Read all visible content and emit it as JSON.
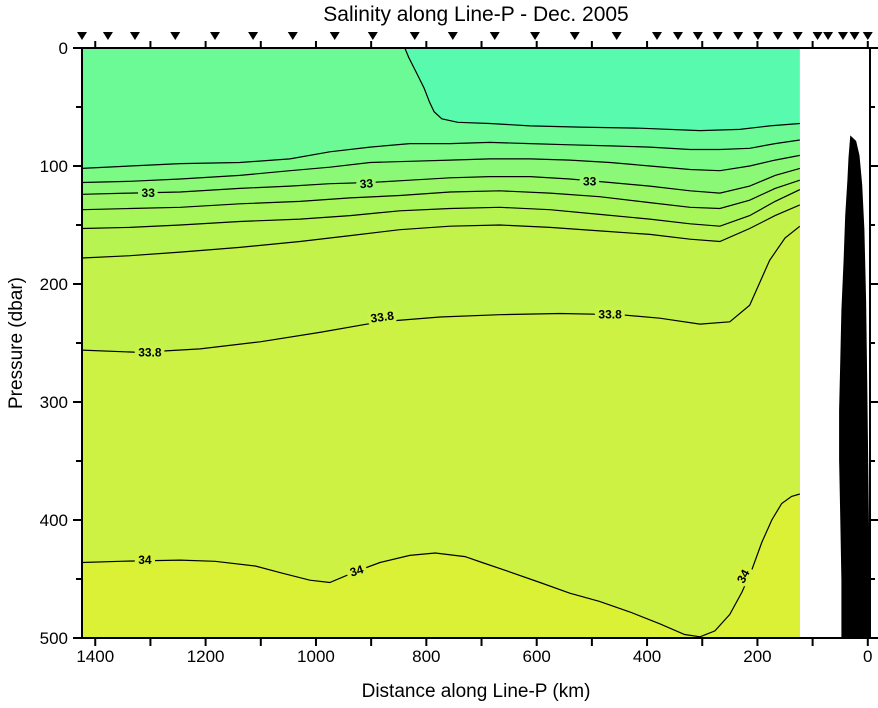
{
  "title": "Salinity along Line-P - Dec. 2005",
  "x_axis": {
    "label": "Distance along Line-P (km)",
    "min": -4,
    "max": 1424,
    "reversed": true,
    "major_ticks": [
      1400,
      1200,
      1000,
      800,
      600,
      400,
      200,
      0
    ],
    "minor_tick_step": 100
  },
  "y_axis": {
    "label": "Pressure (dbar)",
    "min": 0,
    "max": 500,
    "major_ticks": [
      0,
      100,
      200,
      300,
      400,
      500
    ],
    "minor_tick_step": 50
  },
  "chart_data": {
    "type": "filled-contour-section",
    "quantity": "Salinity",
    "data_extent_km": [
      123,
      1424
    ],
    "levels": [
      32.4,
      32.6,
      32.8,
      33.0,
      33.2,
      33.4,
      33.6,
      33.8,
      34.0
    ],
    "band_colors": [
      "#58FAAD",
      "#6CFA97",
      "#7CFA86",
      "#8BF977",
      "#9AF868",
      "#A9F65B",
      "#B7F452",
      "#C3F34B",
      "#CEF243",
      "#DAF136"
    ],
    "contour_line_color": "#000000",
    "bathymetry_color": "#000000",
    "contours": [
      {
        "level": 32.4,
        "points": [
          [
            839,
            0
          ],
          [
            832,
            8
          ],
          [
            819,
            20
          ],
          [
            804,
            34
          ],
          [
            794,
            46
          ],
          [
            786,
            54
          ],
          [
            772,
            60
          ],
          [
            743,
            63
          ],
          [
            685,
            64
          ],
          [
            612,
            66
          ],
          [
            522,
            67
          ],
          [
            413,
            68
          ],
          [
            304,
            70
          ],
          [
            232,
            69
          ],
          [
            178,
            66
          ],
          [
            123,
            64
          ]
        ]
      },
      {
        "level": 32.6,
        "points": [
          [
            1424,
            102
          ],
          [
            1337,
            100
          ],
          [
            1246,
            98
          ],
          [
            1138,
            97
          ],
          [
            1047,
            94
          ],
          [
            975,
            88
          ],
          [
            902,
            84
          ],
          [
            830,
            81
          ],
          [
            757,
            81
          ],
          [
            685,
            80
          ],
          [
            612,
            81
          ],
          [
            540,
            82
          ],
          [
            467,
            83
          ],
          [
            395,
            84
          ],
          [
            322,
            86
          ],
          [
            268,
            86
          ],
          [
            214,
            85
          ],
          [
            168,
            81
          ],
          [
            123,
            78
          ]
        ]
      },
      {
        "level": 32.8,
        "points": [
          [
            1424,
            114
          ],
          [
            1337,
            113
          ],
          [
            1246,
            111
          ],
          [
            1138,
            108
          ],
          [
            1047,
            104
          ],
          [
            975,
            101
          ],
          [
            902,
            97
          ],
          [
            830,
            96
          ],
          [
            757,
            95
          ],
          [
            685,
            94
          ],
          [
            612,
            94
          ],
          [
            540,
            95
          ],
          [
            467,
            97
          ],
          [
            395,
            100
          ],
          [
            322,
            103
          ],
          [
            268,
            104
          ],
          [
            214,
            100
          ],
          [
            168,
            95
          ],
          [
            123,
            91
          ]
        ]
      },
      {
        "level": 33.0,
        "points": [
          [
            1424,
            124
          ],
          [
            1337,
            123
          ],
          [
            1246,
            122
          ],
          [
            1138,
            119
          ],
          [
            1047,
            117
          ],
          [
            975,
            115
          ],
          [
            902,
            114
          ],
          [
            830,
            112
          ],
          [
            757,
            110
          ],
          [
            685,
            109
          ],
          [
            612,
            109
          ],
          [
            540,
            111
          ],
          [
            467,
            114
          ],
          [
            395,
            117
          ],
          [
            322,
            121
          ],
          [
            268,
            123
          ],
          [
            214,
            117
          ],
          [
            168,
            108
          ],
          [
            123,
            102
          ]
        ]
      },
      {
        "level": 33.2,
        "points": [
          [
            1424,
            137
          ],
          [
            1337,
            136
          ],
          [
            1246,
            135
          ],
          [
            1138,
            132
          ],
          [
            1029,
            130
          ],
          [
            938,
            127
          ],
          [
            848,
            125
          ],
          [
            757,
            122
          ],
          [
            667,
            121
          ],
          [
            576,
            123
          ],
          [
            486,
            126
          ],
          [
            395,
            131
          ],
          [
            322,
            135
          ],
          [
            268,
            136
          ],
          [
            214,
            129
          ],
          [
            168,
            119
          ],
          [
            123,
            112
          ]
        ]
      },
      {
        "level": 33.4,
        "points": [
          [
            1424,
            153
          ],
          [
            1337,
            152
          ],
          [
            1246,
            150
          ],
          [
            1138,
            147
          ],
          [
            1029,
            145
          ],
          [
            938,
            142
          ],
          [
            848,
            138
          ],
          [
            757,
            136
          ],
          [
            667,
            135
          ],
          [
            576,
            137
          ],
          [
            486,
            141
          ],
          [
            395,
            145
          ],
          [
            322,
            149
          ],
          [
            268,
            151
          ],
          [
            214,
            142
          ],
          [
            168,
            130
          ],
          [
            123,
            120
          ]
        ]
      },
      {
        "level": 33.6,
        "points": [
          [
            1424,
            178
          ],
          [
            1337,
            176
          ],
          [
            1246,
            173
          ],
          [
            1138,
            169
          ],
          [
            1029,
            164
          ],
          [
            938,
            159
          ],
          [
            848,
            154
          ],
          [
            757,
            151
          ],
          [
            667,
            150
          ],
          [
            576,
            152
          ],
          [
            486,
            155
          ],
          [
            395,
            158
          ],
          [
            322,
            162
          ],
          [
            268,
            164
          ],
          [
            214,
            153
          ],
          [
            168,
            142
          ],
          [
            123,
            133
          ]
        ]
      },
      {
        "level": 33.8,
        "points": [
          [
            1424,
            256
          ],
          [
            1319,
            258
          ],
          [
            1210,
            255
          ],
          [
            1101,
            249
          ],
          [
            993,
            241
          ],
          [
            884,
            232
          ],
          [
            775,
            228
          ],
          [
            667,
            226
          ],
          [
            558,
            225
          ],
          [
            449,
            226
          ],
          [
            377,
            229
          ],
          [
            304,
            234
          ],
          [
            250,
            232
          ],
          [
            214,
            218
          ],
          [
            178,
            180
          ],
          [
            150,
            161
          ],
          [
            123,
            151
          ]
        ]
      },
      {
        "level": 34.0,
        "points": [
          [
            1424,
            436
          ],
          [
            1355,
            435
          ],
          [
            1246,
            434
          ],
          [
            1183,
            435
          ],
          [
            1110,
            439
          ],
          [
            1062,
            445
          ],
          [
            1011,
            451
          ],
          [
            975,
            453
          ],
          [
            924,
            443
          ],
          [
            884,
            436
          ],
          [
            830,
            430
          ],
          [
            784,
            428
          ],
          [
            730,
            431
          ],
          [
            699,
            436
          ],
          [
            649,
            444
          ],
          [
            594,
            453
          ],
          [
            540,
            462
          ],
          [
            486,
            469
          ],
          [
            431,
            478
          ],
          [
            377,
            488
          ],
          [
            332,
            497
          ],
          [
            304,
            499
          ],
          [
            277,
            494
          ],
          [
            250,
            480
          ],
          [
            228,
            461
          ],
          [
            210,
            442
          ],
          [
            192,
            419
          ],
          [
            174,
            400
          ],
          [
            156,
            386
          ],
          [
            138,
            380
          ],
          [
            123,
            378
          ]
        ]
      }
    ],
    "contour_labels": [
      {
        "text": "33",
        "km": 1304,
        "dbar": 123,
        "rot": 0,
        "halo": "#93F96F"
      },
      {
        "text": "33",
        "km": 908,
        "dbar": 115,
        "rot": -5,
        "halo": "#93F96F"
      },
      {
        "text": "33",
        "km": 504,
        "dbar": 113,
        "rot": 0,
        "halo": "#93F96F"
      },
      {
        "text": "33.8",
        "km": 1301,
        "dbar": 258,
        "rot": 0,
        "halo": "#C9F347"
      },
      {
        "text": "33.8",
        "km": 879,
        "dbar": 228,
        "rot": -8,
        "halo": "#C9F347"
      },
      {
        "text": "33.8",
        "km": 467,
        "dbar": 226,
        "rot": 0,
        "halo": "#C9F347"
      },
      {
        "text": "34",
        "km": 1310,
        "dbar": 434,
        "rot": 0,
        "halo": "#D4F23C"
      },
      {
        "text": "34",
        "km": 924,
        "dbar": 443,
        "rot": -18,
        "halo": "#D4F23C"
      },
      {
        "text": "34",
        "km": 219,
        "dbar": 446,
        "rot": -62,
        "halo": "#D4F23C"
      }
    ],
    "stations_km": [
      1424,
      1377,
      1328,
      1255,
      1183,
      1114,
      1042,
      966,
      897,
      821,
      752,
      676,
      603,
      531,
      455,
      382,
      344,
      308,
      272,
      235,
      199,
      163,
      127,
      91,
      72,
      45,
      24,
      0
    ],
    "bathymetry": [
      [
        31,
        75
      ],
      [
        22,
        79
      ],
      [
        16,
        91
      ],
      [
        11,
        116
      ],
      [
        7,
        154
      ],
      [
        4,
        214
      ],
      [
        2,
        281
      ],
      [
        0,
        358
      ],
      [
        -2,
        434
      ],
      [
        -2,
        500
      ],
      [
        47,
        500
      ],
      [
        47,
        451
      ],
      [
        49,
        400
      ],
      [
        51,
        349
      ],
      [
        51,
        307
      ],
      [
        49,
        264
      ],
      [
        47,
        222
      ],
      [
        43,
        180
      ],
      [
        40,
        142
      ],
      [
        36,
        112
      ],
      [
        34,
        93
      ],
      [
        31,
        75
      ]
    ]
  }
}
